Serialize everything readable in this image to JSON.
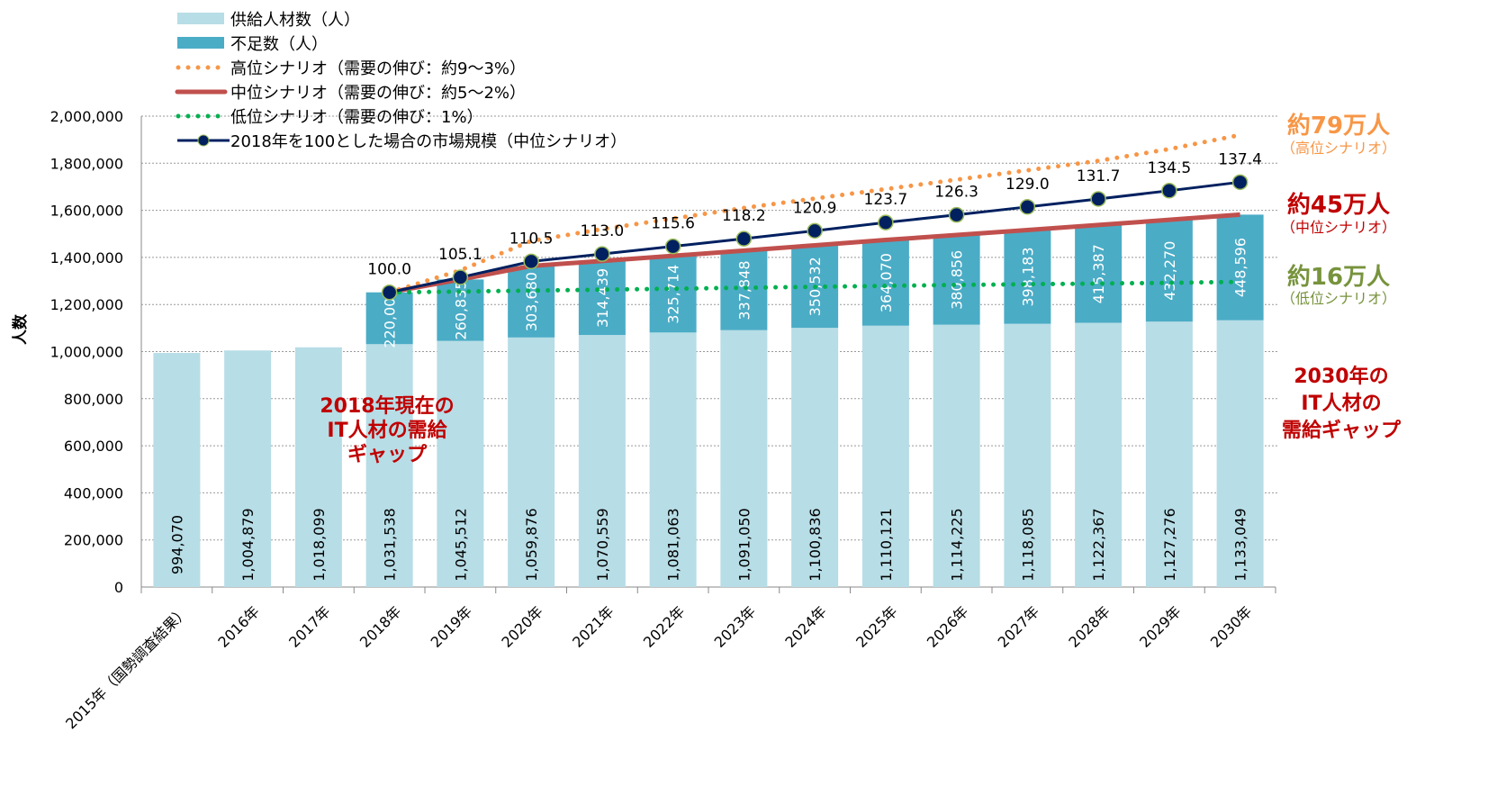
{
  "chart_data": {
    "type": "bar",
    "ylabel": "人数",
    "ylim": [
      0,
      2000000
    ],
    "yticks": [
      "0",
      "200,000",
      "400,000",
      "600,000",
      "800,000",
      "1,000,000",
      "1,200,000",
      "1,400,000",
      "1,600,000",
      "1,800,000",
      "2,000,000"
    ],
    "grid": "horizontal dotted",
    "legend_position": "top-left",
    "categories": [
      "2015年（国勢調査結果）",
      "2016年",
      "2017年",
      "2018年",
      "2019年",
      "2020年",
      "2021年",
      "2022年",
      "2023年",
      "2024年",
      "2025年",
      "2026年",
      "2027年",
      "2028年",
      "2029年",
      "2030年"
    ],
    "series": [
      {
        "name": "供給人材数（人）",
        "kind": "bar-stacked",
        "color": "#b7dde6",
        "values": [
          994070,
          1004879,
          1018099,
          1031538,
          1045512,
          1059876,
          1070559,
          1081063,
          1091050,
          1100836,
          1110121,
          1114225,
          1118085,
          1122367,
          1127276,
          1133049
        ],
        "labels": [
          "994,070",
          "1,004,879",
          "1,018,099",
          "1,031,538",
          "1,045,512",
          "1,059,876",
          "1,070,559",
          "1,081,063",
          "1,091,050",
          "1,100,836",
          "1,110,121",
          "1,114,225",
          "1,118,085",
          "1,122,367",
          "1,127,276",
          "1,133,049"
        ]
      },
      {
        "name": "不足数（人）",
        "kind": "bar-stacked",
        "color": "#4bacc6",
        "values": [
          null,
          null,
          null,
          220000,
          260835,
          303680,
          314439,
          325714,
          337848,
          350532,
          364070,
          380856,
          398183,
          415387,
          432270,
          448596
        ],
        "labels": [
          "",
          "",
          "",
          "220,000",
          "260,835",
          "303,680",
          "314,439",
          "325,714",
          "337,848",
          "350,532",
          "364,070",
          "380,856",
          "398,183",
          "415,387",
          "432,270",
          "448,596"
        ]
      },
      {
        "name": "高位シナリオ（需要の伸び：約9～3%）",
        "kind": "dotted-line",
        "color": "#f79646",
        "values": [
          null,
          null,
          null,
          1251538,
          1345000,
          1470000,
          1520000,
          1565000,
          1610000,
          1650000,
          1690000,
          1730000,
          1770000,
          1810000,
          1860000,
          1920000
        ]
      },
      {
        "name": "中位シナリオ（需要の伸び：約5～2%）",
        "kind": "line",
        "color": "#c0504d",
        "values": [
          null,
          null,
          null,
          1251538,
          1306347,
          1363556,
          1384998,
          1406777,
          1428898,
          1451368,
          1474191,
          1495081,
          1516268,
          1537754,
          1559546,
          1581645
        ]
      },
      {
        "name": "低位シナリオ（需要の伸び：1%）",
        "kind": "dotted-line",
        "color": "#00b050",
        "values": [
          null,
          null,
          null,
          1251538,
          1255000,
          1259000,
          1263000,
          1267000,
          1271000,
          1275000,
          1279000,
          1283000,
          1286000,
          1289000,
          1292000,
          1296000
        ]
      },
      {
        "name": "2018年を100とした場合の市場規模（中位シナリオ）",
        "kind": "line-marker",
        "color": "#002060",
        "index": [
          null,
          null,
          null,
          100.0,
          105.1,
          110.5,
          113.0,
          115.6,
          118.2,
          120.9,
          123.7,
          126.3,
          129.0,
          131.7,
          134.5,
          137.4
        ],
        "labels": [
          "",
          "",
          "",
          "100.0",
          "105.1",
          "110.5",
          "113.0",
          "115.6",
          "118.2",
          "120.9",
          "123.7",
          "126.3",
          "129.0",
          "131.7",
          "134.5",
          "137.4"
        ]
      }
    ],
    "annotations": {
      "high": {
        "main": "約79万人",
        "sub": "（高位シナリオ）",
        "color": "#f79646"
      },
      "mid": {
        "main": "約45万人",
        "sub": "（中位シナリオ）",
        "color": "#c00000"
      },
      "low": {
        "main": "約16万人",
        "sub": "（低位シナリオ）",
        "color": "#77933c"
      },
      "gap2030": [
        "2030年の",
        "IT人材の",
        "需給ギャップ"
      ],
      "gap2018": [
        "2018年現在の",
        "IT人材の需給",
        "ギャップ"
      ],
      "gap_color": "#c00000"
    }
  }
}
